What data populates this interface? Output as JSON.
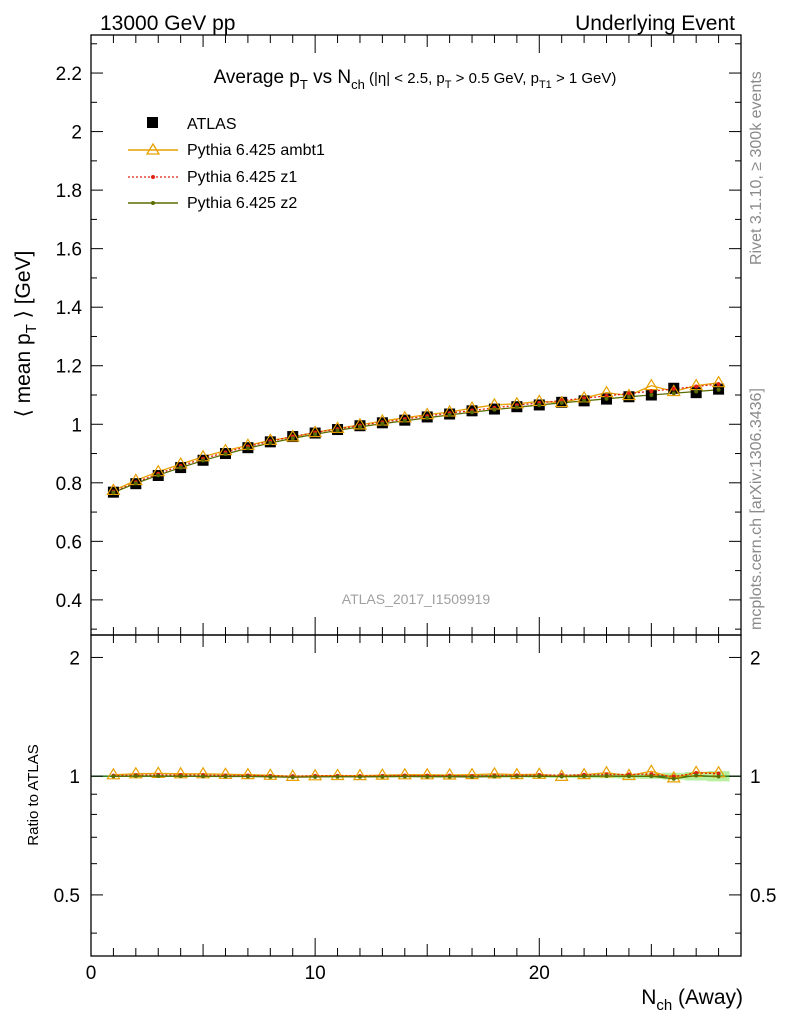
{
  "header": {
    "left": "13000 GeV pp",
    "right": "Underlying Event"
  },
  "side_labels": {
    "rivet": "Rivet 3.1.10, ≥ 300k events",
    "mcplots": "mcplots.cern.ch [arXiv:1306.3436]"
  },
  "analysis_id": "ATLAS_2017_I1509919",
  "colors": {
    "atlas": "#000000",
    "ambt1": "#e8a000",
    "z1": "#e02010",
    "z2": "#5a6e00",
    "band": "#b8f0a0",
    "ref_line": "#1a7a1a"
  },
  "chart_data": [
    {
      "type": "scatter",
      "title": "Average p_T vs N_ch (|η| < 2.5, p_T > 0.5 GeV, p_T1 > 1 GeV)",
      "title_parts": {
        "a": "Average p",
        "a_sub": "T",
        "b": " vs N",
        "b_sub": "ch",
        "c": " (|η| < 2.5, p",
        "c_sub": "T",
        "d": " > 0.5 GeV, p",
        "d_sub": "T1",
        "e": " > 1 GeV)"
      },
      "ylabel": "⟨ mean p_T ⟩ [GeV]",
      "ylabel_parts": {
        "a": "⟨ mean p",
        "sub": "T",
        "b": " ⟩ [GeV]"
      },
      "xlim": [
        0,
        29
      ],
      "ylim": [
        0.28,
        2.33
      ],
      "yticks": [
        "0.4",
        "0.6",
        "0.8",
        "1",
        "1.2",
        "1.4",
        "1.6",
        "1.8",
        "2",
        "2.2"
      ],
      "legend_position": "top-left",
      "x": [
        1,
        2,
        3,
        4,
        5,
        6,
        7,
        8,
        9,
        10,
        11,
        12,
        13,
        14,
        15,
        16,
        17,
        18,
        19,
        20,
        21,
        22,
        23,
        24,
        25,
        26,
        27,
        28
      ],
      "series": [
        {
          "name": "ATLAS",
          "marker": "square",
          "values": [
            0.768,
            0.797,
            0.825,
            0.852,
            0.877,
            0.9,
            0.92,
            0.94,
            0.958,
            0.97,
            0.982,
            0.995,
            1.005,
            1.014,
            1.025,
            1.035,
            1.046,
            1.052,
            1.06,
            1.066,
            1.075,
            1.08,
            1.086,
            1.094,
            1.1,
            1.123,
            1.108,
            1.12
          ]
        },
        {
          "name": "Pythia 6.425 ambt1",
          "marker": "triangle",
          "line": "solid",
          "values": [
            0.774,
            0.808,
            0.838,
            0.864,
            0.889,
            0.91,
            0.928,
            0.945,
            0.957,
            0.972,
            0.986,
            0.998,
            1.011,
            1.022,
            1.033,
            1.042,
            1.055,
            1.066,
            1.07,
            1.078,
            1.074,
            1.09,
            1.108,
            1.098,
            1.132,
            1.112,
            1.132,
            1.142
          ]
        },
        {
          "name": "Pythia 6.425 z1",
          "marker": "dot",
          "line": "dotted",
          "values": [
            0.77,
            0.802,
            0.831,
            0.858,
            0.882,
            0.904,
            0.924,
            0.942,
            0.958,
            0.972,
            0.984,
            0.996,
            1.007,
            1.018,
            1.028,
            1.038,
            1.047,
            1.056,
            1.065,
            1.073,
            1.081,
            1.089,
            1.097,
            1.105,
            1.113,
            1.121,
            1.129,
            1.137
          ]
        },
        {
          "name": "Pythia 6.425 z2",
          "marker": "dot",
          "line": "solid",
          "values": [
            0.767,
            0.798,
            0.826,
            0.852,
            0.876,
            0.898,
            0.918,
            0.936,
            0.952,
            0.966,
            0.979,
            0.991,
            1.002,
            1.012,
            1.022,
            1.032,
            1.041,
            1.05,
            1.058,
            1.066,
            1.073,
            1.08,
            1.087,
            1.094,
            1.1,
            1.106,
            1.112,
            1.118
          ]
        }
      ]
    },
    {
      "type": "line",
      "ylabel": "Ratio to ATLAS",
      "xlabel": "N_ch (Away)",
      "xlabel_parts": {
        "a": "N",
        "sub": "ch",
        "b": " (Away)"
      },
      "xlim": [
        0,
        29
      ],
      "ylim": [
        0.35,
        2.28
      ],
      "xticks": [
        "0",
        "10",
        "20"
      ],
      "yticks": [
        "0.5",
        "1",
        "2"
      ],
      "reference": 1.0,
      "x": [
        1,
        2,
        3,
        4,
        5,
        6,
        7,
        8,
        9,
        10,
        11,
        12,
        13,
        14,
        15,
        16,
        17,
        18,
        19,
        20,
        21,
        22,
        23,
        24,
        25,
        26,
        27,
        28
      ],
      "band_lo": [
        0.995,
        0.995,
        0.995,
        0.995,
        0.995,
        0.995,
        0.995,
        0.995,
        0.995,
        0.995,
        0.994,
        0.994,
        0.994,
        0.994,
        0.993,
        0.993,
        0.993,
        0.992,
        0.992,
        0.991,
        0.99,
        0.989,
        0.988,
        0.986,
        0.984,
        0.98,
        0.975,
        0.97
      ],
      "band_hi": [
        1.005,
        1.005,
        1.005,
        1.005,
        1.005,
        1.005,
        1.005,
        1.005,
        1.005,
        1.005,
        1.006,
        1.006,
        1.006,
        1.006,
        1.007,
        1.007,
        1.007,
        1.008,
        1.008,
        1.009,
        1.01,
        1.011,
        1.012,
        1.014,
        1.016,
        1.02,
        1.025,
        1.03
      ],
      "series": [
        {
          "name": "Pythia 6.425 ambt1",
          "values": [
            1.008,
            1.014,
            1.016,
            1.014,
            1.014,
            1.011,
            1.009,
            1.005,
            0.999,
            1.002,
            1.004,
            1.003,
            1.006,
            1.008,
            1.008,
            1.007,
            1.009,
            1.013,
            1.009,
            1.011,
            0.999,
            1.009,
            1.02,
            1.004,
            1.029,
            0.99,
            1.022,
            1.02
          ]
        },
        {
          "name": "Pythia 6.425 z1",
          "values": [
            1.003,
            1.006,
            1.007,
            1.007,
            1.006,
            1.004,
            1.004,
            1.002,
            1.0,
            1.002,
            1.002,
            1.001,
            1.002,
            1.004,
            1.003,
            1.003,
            1.001,
            1.004,
            1.005,
            1.007,
            1.006,
            1.008,
            1.01,
            1.01,
            1.012,
            0.998,
            1.019,
            1.015
          ]
        },
        {
          "name": "Pythia 6.425 z2",
          "values": [
            0.999,
            1.001,
            1.001,
            1.0,
            0.999,
            0.998,
            0.998,
            0.996,
            0.994,
            0.996,
            0.997,
            0.996,
            0.997,
            0.998,
            0.997,
            0.997,
            0.995,
            0.998,
            0.998,
            1.0,
            0.998,
            1.0,
            1.001,
            1.0,
            1.0,
            0.985,
            1.004,
            0.998
          ]
        }
      ]
    }
  ]
}
